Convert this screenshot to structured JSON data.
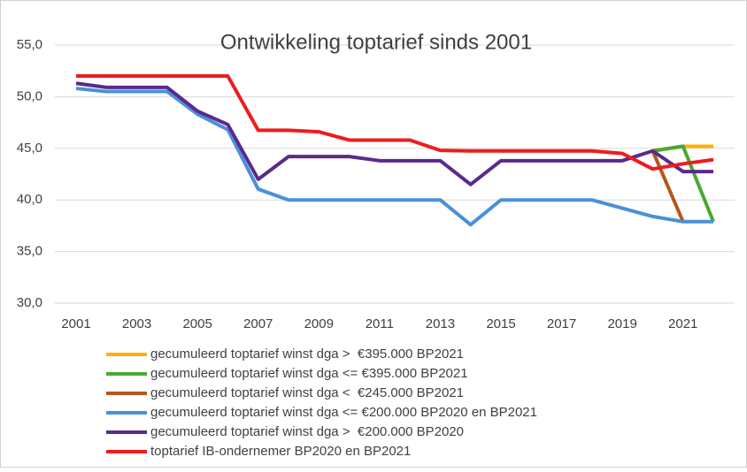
{
  "chart_data": {
    "type": "line",
    "title": "Ontwikkeling toptarief sinds 2001",
    "x": [
      2001,
      2002,
      2003,
      2004,
      2005,
      2006,
      2007,
      2008,
      2009,
      2010,
      2011,
      2012,
      2013,
      2014,
      2015,
      2016,
      2017,
      2018,
      2019,
      2020,
      2021,
      2022
    ],
    "xlim": [
      2000.3,
      2022.7
    ],
    "xticks": [
      2001,
      2003,
      2005,
      2007,
      2009,
      2011,
      2013,
      2015,
      2017,
      2019,
      2021
    ],
    "ylim": [
      30,
      55
    ],
    "yticks": [
      {
        "value": 30,
        "label": "30,0"
      },
      {
        "value": 35,
        "label": "35,0"
      },
      {
        "value": 40,
        "label": "40,0"
      },
      {
        "value": 45,
        "label": "45,0"
      },
      {
        "value": 50,
        "label": "50,0"
      },
      {
        "value": 55,
        "label": "55,0"
      }
    ],
    "grid": true,
    "legend": "bottom",
    "series": [
      {
        "name": "gecumuleerd toptarief winst dga >  €395.000 BP2021",
        "color": "#ffb000",
        "values": [
          null,
          null,
          null,
          null,
          null,
          null,
          null,
          null,
          null,
          null,
          null,
          null,
          null,
          null,
          null,
          null,
          null,
          null,
          null,
          44.75,
          45.2,
          45.2
        ]
      },
      {
        "name": "gecumuleerd toptarief winst dga <= €395.000 BP2021",
        "color": "#4aa832",
        "values": [
          null,
          null,
          null,
          null,
          null,
          null,
          null,
          null,
          null,
          null,
          null,
          null,
          null,
          null,
          null,
          null,
          null,
          null,
          null,
          44.75,
          45.2,
          37.9
        ]
      },
      {
        "name": "gecumuleerd toptarief winst dga <  €245.000 BP2021",
        "color": "#b5561b",
        "values": [
          null,
          null,
          null,
          null,
          null,
          null,
          null,
          null,
          null,
          null,
          null,
          null,
          null,
          null,
          null,
          null,
          null,
          null,
          null,
          44.75,
          37.9,
          null
        ]
      },
      {
        "name": "gecumuleerd toptarief winst dga <= €200.000 BP2020 en BP2021",
        "color": "#4a90d9",
        "values": [
          50.8,
          50.5,
          50.5,
          50.5,
          48.3,
          46.8,
          41.05,
          40,
          40,
          40,
          40,
          40,
          40,
          37.6,
          40,
          40,
          40,
          40,
          39.2,
          38.4,
          37.9,
          37.9
        ]
      },
      {
        "name": "gecumuleerd toptarief winst dga >  €200.000 BP2020",
        "color": "#5b2a8c",
        "values": [
          51.3,
          50.9,
          50.9,
          50.9,
          48.6,
          47.3,
          42.0,
          44.2,
          44.2,
          44.2,
          43.8,
          43.8,
          43.8,
          41.5,
          43.8,
          43.8,
          43.8,
          43.8,
          43.8,
          44.75,
          42.75,
          42.75
        ]
      },
      {
        "name": "toptarief IB-ondernemer BP2020 en BP2021",
        "color": "#ee1c1c",
        "values": [
          52,
          52,
          52,
          52,
          52,
          52,
          46.75,
          46.75,
          46.6,
          45.8,
          45.8,
          45.8,
          44.8,
          44.75,
          44.75,
          44.75,
          44.75,
          44.75,
          44.5,
          43.0,
          43.5,
          43.9
        ]
      }
    ]
  }
}
